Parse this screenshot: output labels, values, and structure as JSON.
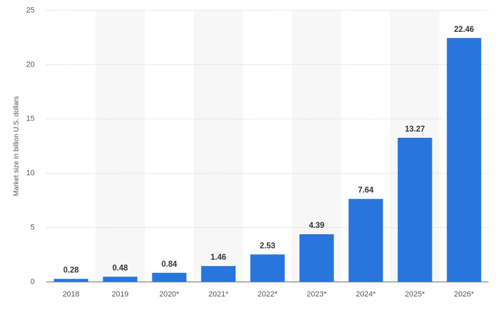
{
  "chart_data": {
    "type": "bar",
    "y_label": "Market size in billion U.S. dollars",
    "categories": [
      "2018",
      "2019",
      "2020*",
      "2021*",
      "2022*",
      "2023*",
      "2024*",
      "2025*",
      "2026*"
    ],
    "values": [
      0.28,
      0.48,
      0.84,
      1.46,
      2.53,
      4.39,
      7.64,
      13.27,
      22.46
    ],
    "color": "#2876dd",
    "ylim": [
      0,
      25
    ],
    "yticks": [
      0,
      5,
      10,
      15,
      20,
      25
    ],
    "grid": true
  }
}
